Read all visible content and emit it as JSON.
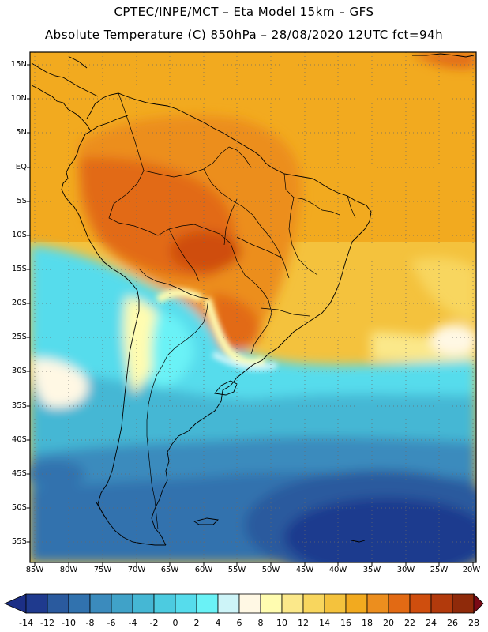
{
  "header": {
    "line1": "CPTEC/INPE/MCT –  Eta Model 15km – GFS",
    "line2": "Absolute Temperature (C) 850hPa – 28/08/2020 12UTC fct=94h"
  },
  "map": {
    "lat_labels": [
      "15N",
      "10N",
      "5N",
      "EQ",
      "5S",
      "10S",
      "15S",
      "20S",
      "25S",
      "30S",
      "35S",
      "40S",
      "45S",
      "50S",
      "55S"
    ],
    "lon_labels": [
      "85W",
      "80W",
      "75W",
      "70W",
      "65W",
      "60W",
      "55W",
      "50W",
      "45W",
      "40W",
      "35W",
      "30W",
      "25W",
      "20W"
    ]
  },
  "colorbar": {
    "labels": [
      "-14",
      "-12",
      "-10",
      "-8",
      "-6",
      "-4",
      "-2",
      "0",
      "2",
      "4",
      "6",
      "8",
      "10",
      "12",
      "14",
      "16",
      "18",
      "20",
      "22",
      "24",
      "26",
      "28"
    ],
    "colors": [
      "#1f3a8e",
      "#2a5a9e",
      "#3172ae",
      "#3b8bbd",
      "#40a2c8",
      "#45b7d4",
      "#4ccbe0",
      "#56dcec",
      "#6af2f6",
      "#cdf4f8",
      "#fff8e4",
      "#fffcb0",
      "#fbe88a",
      "#f8d65e",
      "#f4c23d",
      "#f2aa1f",
      "#ec8e1e",
      "#e26a14",
      "#cf4e0e",
      "#b23a0c",
      "#8f2a0a",
      "#6e1c0a"
    ],
    "under_color": "#1c2f86",
    "over_color": "#7a0a16"
  }
}
